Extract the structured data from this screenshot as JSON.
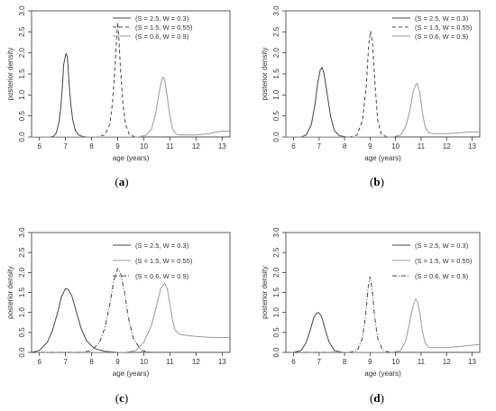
{
  "chart_data": [
    {
      "type": "line",
      "panel_label": "(a)",
      "xlabel": "age (years)",
      "ylabel": "posterior density",
      "xlim": [
        5.7,
        13.3
      ],
      "ylim": [
        0,
        3.0
      ],
      "x_ticks": [
        "6",
        "7",
        "8",
        "9",
        "10",
        "11",
        "12",
        "13"
      ],
      "y_ticks": [
        "0.0",
        "0.5",
        "1.0",
        "1.5",
        "2.0",
        "2.5",
        "3.0"
      ],
      "legend_position": "top-right",
      "series": [
        {
          "name": "(S = 2.5, W = 0.3)",
          "color": "#444444",
          "dash": "solid",
          "x": [
            6.4,
            6.55,
            6.65,
            6.75,
            6.82,
            6.88,
            6.93,
            6.97,
            7.0,
            7.03,
            7.07,
            7.1,
            7.14,
            7.2,
            7.28,
            7.38,
            7.5,
            7.62,
            7.8,
            8.0
          ],
          "y": [
            0.0,
            0.02,
            0.1,
            0.35,
            0.7,
            1.2,
            1.72,
            1.85,
            1.95,
            1.98,
            1.9,
            1.65,
            1.25,
            0.8,
            0.4,
            0.15,
            0.05,
            0.02,
            0.0,
            0.0
          ]
        },
        {
          "name": "(S = 1.5, W = 0.55)",
          "color": "#444444",
          "dash": "dashed",
          "x": [
            8.2,
            8.5,
            8.7,
            8.8,
            8.9,
            8.97,
            9.0,
            9.03,
            9.1,
            9.2,
            9.3,
            9.45,
            9.7
          ],
          "y": [
            0.0,
            0.05,
            0.3,
            0.8,
            1.7,
            2.5,
            2.72,
            2.5,
            1.7,
            0.8,
            0.3,
            0.05,
            0.0
          ]
        },
        {
          "name": "(S = 0.6, W = 0.9)",
          "color": "#999999",
          "dash": "solid",
          "x": [
            9.8,
            10.1,
            10.3,
            10.45,
            10.6,
            10.7,
            10.75,
            10.8,
            10.9,
            11.0,
            11.1,
            11.25,
            11.5,
            12.0,
            12.5,
            12.8,
            13.0,
            13.3
          ],
          "y": [
            0.0,
            0.05,
            0.2,
            0.55,
            1.1,
            1.38,
            1.42,
            1.35,
            0.95,
            0.5,
            0.2,
            0.06,
            0.05,
            0.05,
            0.08,
            0.12,
            0.14,
            0.14
          ]
        }
      ]
    },
    {
      "type": "line",
      "panel_label": "(b)",
      "xlabel": "age (years)",
      "ylabel": "posterior density",
      "xlim": [
        5.7,
        13.3
      ],
      "ylim": [
        0,
        3.0
      ],
      "x_ticks": [
        "6",
        "7",
        "8",
        "9",
        "10",
        "11",
        "12",
        "13"
      ],
      "y_ticks": [
        "0.0",
        "0.5",
        "1.0",
        "1.5",
        "2.0",
        "2.5",
        "3.0"
      ],
      "legend_position": "top-right",
      "series": [
        {
          "name": "(S = 2.5, W = 0.3)",
          "color": "#444444",
          "dash": "solid",
          "x": [
            6.3,
            6.5,
            6.7,
            6.85,
            6.95,
            7.05,
            7.12,
            7.2,
            7.3,
            7.45,
            7.6,
            7.8,
            8.1
          ],
          "y": [
            0.0,
            0.05,
            0.3,
            0.8,
            1.3,
            1.6,
            1.65,
            1.5,
            1.1,
            0.5,
            0.15,
            0.03,
            0.0
          ]
        },
        {
          "name": "(S = 1.5, W = 0.55)",
          "color": "#444444",
          "dash": "dashed",
          "x": [
            8.2,
            8.5,
            8.7,
            8.85,
            8.95,
            9.02,
            9.1,
            9.2,
            9.3,
            9.45,
            9.7
          ],
          "y": [
            0.0,
            0.05,
            0.4,
            1.2,
            2.2,
            2.52,
            2.2,
            1.2,
            0.4,
            0.05,
            0.0
          ]
        },
        {
          "name": "(S = 0.6, W = 0.9)",
          "color": "#999999",
          "dash": "solid",
          "x": [
            9.9,
            10.2,
            10.4,
            10.55,
            10.7,
            10.8,
            10.85,
            10.95,
            11.05,
            11.15,
            11.3,
            11.5,
            12.0,
            12.5,
            13.0,
            13.3
          ],
          "y": [
            0.0,
            0.05,
            0.25,
            0.6,
            1.1,
            1.25,
            1.27,
            1.05,
            0.6,
            0.25,
            0.1,
            0.08,
            0.08,
            0.1,
            0.12,
            0.12
          ]
        }
      ]
    },
    {
      "type": "line",
      "panel_label": "(c)",
      "xlabel": "age (years)",
      "ylabel": "posterior density",
      "xlim": [
        5.7,
        13.3
      ],
      "ylim": [
        0,
        3.0
      ],
      "x_ticks": [
        "6",
        "7",
        "8",
        "9",
        "10",
        "11",
        "12",
        "13"
      ],
      "y_ticks": [
        "0.0",
        "0.5",
        "1.0",
        "1.5",
        "2.0",
        "2.5",
        "3.0"
      ],
      "legend_position": "top-right",
      "series": [
        {
          "name": "(S = 2.5, W = 0.3)",
          "color": "#444444",
          "dash": "solid",
          "x": [
            5.7,
            6.0,
            6.3,
            6.5,
            6.7,
            6.85,
            7.0,
            7.1,
            7.25,
            7.4,
            7.6,
            7.8,
            8.1,
            8.5,
            9.0
          ],
          "y": [
            0.0,
            0.05,
            0.25,
            0.55,
            1.0,
            1.4,
            1.6,
            1.58,
            1.4,
            1.05,
            0.6,
            0.3,
            0.1,
            0.03,
            0.0
          ]
        },
        {
          "name": "(S = 1.5, W = 0.55)",
          "color": "#999999",
          "dash": "solid",
          "x": [
            9.3,
            9.7,
            10.0,
            10.3,
            10.5,
            10.65,
            10.8,
            10.9,
            11.0,
            11.1,
            11.2,
            11.4,
            11.7,
            12.0,
            12.5,
            13.0,
            13.3
          ],
          "y": [
            0.0,
            0.05,
            0.25,
            0.7,
            1.2,
            1.6,
            1.73,
            1.6,
            1.2,
            0.8,
            0.55,
            0.45,
            0.42,
            0.4,
            0.38,
            0.37,
            0.37
          ]
        },
        {
          "name": "(S = 0.6, W = 0.9)",
          "color": "#444444",
          "dash": "dashdot",
          "x": [
            7.6,
            8.0,
            8.3,
            8.5,
            8.7,
            8.85,
            9.0,
            9.1,
            9.25,
            9.4,
            9.6,
            9.9,
            10.3
          ],
          "y": [
            0.0,
            0.05,
            0.25,
            0.6,
            1.2,
            1.8,
            2.1,
            2.0,
            1.55,
            0.9,
            0.35,
            0.05,
            0.0
          ]
        }
      ]
    },
    {
      "type": "line",
      "panel_label": "(d)",
      "xlabel": "age (years)",
      "ylabel": "posterior density",
      "xlim": [
        5.7,
        13.3
      ],
      "ylim": [
        0,
        3.0
      ],
      "x_ticks": [
        "6",
        "7",
        "8",
        "9",
        "10",
        "11",
        "12",
        "13"
      ],
      "y_ticks": [
        "0.0",
        "0.5",
        "1.0",
        "1.5",
        "2.0",
        "2.5",
        "3.0"
      ],
      "legend_position": "top-right",
      "series": [
        {
          "name": "(S = 2.5, W = 0.3)",
          "color": "#444444",
          "dash": "solid",
          "x": [
            6.0,
            6.3,
            6.5,
            6.65,
            6.8,
            6.9,
            6.98,
            7.1,
            7.25,
            7.4,
            7.6,
            7.9
          ],
          "y": [
            0.0,
            0.05,
            0.25,
            0.55,
            0.88,
            0.98,
            1.0,
            0.9,
            0.55,
            0.25,
            0.05,
            0.0
          ]
        },
        {
          "name": "(S = 1.5, W = 0.55)",
          "color": "#999999",
          "dash": "solid",
          "x": [
            9.9,
            10.2,
            10.4,
            10.55,
            10.7,
            10.78,
            10.85,
            10.95,
            11.05,
            11.15,
            11.3,
            11.5,
            12.0,
            12.5,
            13.0,
            13.3
          ],
          "y": [
            0.0,
            0.05,
            0.3,
            0.75,
            1.2,
            1.33,
            1.3,
            1.0,
            0.55,
            0.25,
            0.13,
            0.12,
            0.12,
            0.15,
            0.18,
            0.2
          ]
        },
        {
          "name": "(S = 0.6, W = 0.9)",
          "color": "#444444",
          "dash": "dashdot",
          "x": [
            8.2,
            8.5,
            8.7,
            8.82,
            8.92,
            9.0,
            9.08,
            9.18,
            9.3,
            9.5,
            9.8
          ],
          "y": [
            0.0,
            0.05,
            0.35,
            0.9,
            1.6,
            1.9,
            1.6,
            0.9,
            0.35,
            0.05,
            0.0
          ]
        }
      ]
    }
  ]
}
